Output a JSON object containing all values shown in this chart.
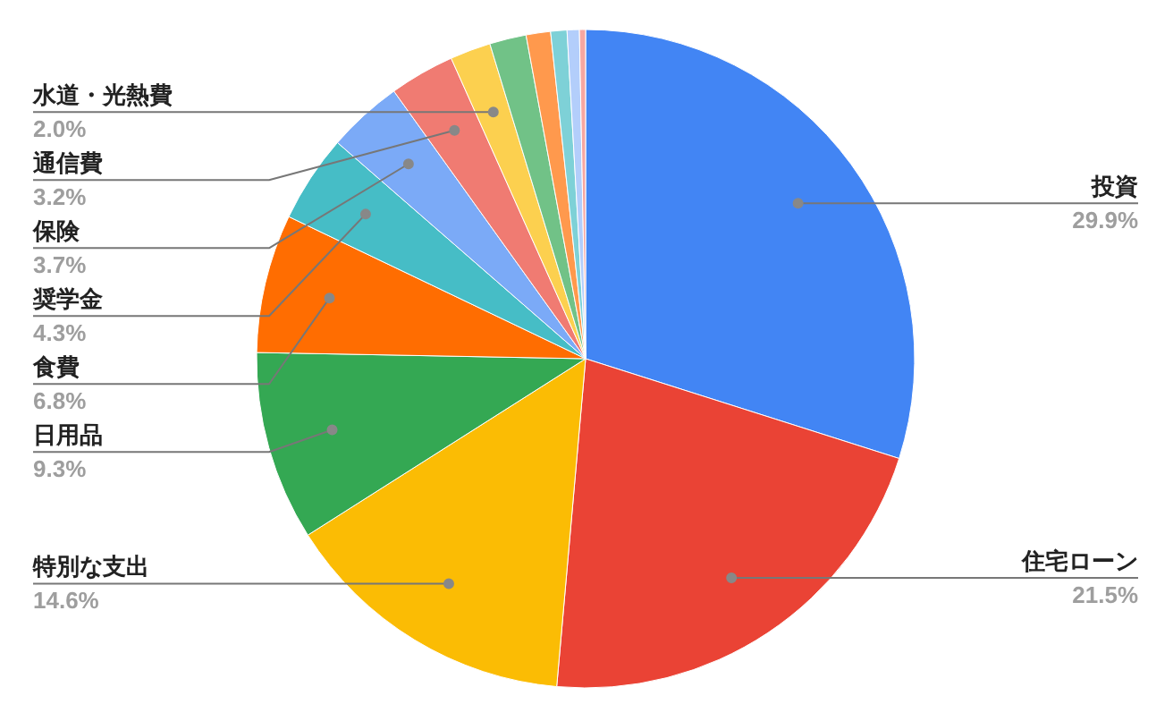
{
  "chart_data": {
    "type": "pie",
    "categories": [
      "投資",
      "住宅ローン",
      "特別な支出",
      "日用品",
      "食費",
      "奨学金",
      "保険",
      "通信費",
      "水道・光熱費",
      null,
      null,
      null,
      null,
      null
    ],
    "values": [
      29.9,
      21.5,
      14.6,
      9.3,
      6.8,
      4.3,
      3.7,
      3.2,
      2.0,
      1.8,
      1.2,
      0.8,
      0.6,
      0.3
    ],
    "colors": [
      "#4285f4",
      "#ea4335",
      "#fbbc04",
      "#34a853",
      "#ff6d01",
      "#46bdc6",
      "#7baaf7",
      "#f07b72",
      "#fcd04f",
      "#71c287",
      "#ff994d",
      "#7ed1d7",
      "#b3cefb",
      "#f7a7a1"
    ],
    "value_labels": [
      "29.9%",
      "21.5%",
      "14.6%",
      "9.3%",
      "6.8%",
      "4.3%",
      "3.7%",
      "3.2%",
      "2.0%",
      null,
      null,
      null,
      null,
      null
    ]
  }
}
